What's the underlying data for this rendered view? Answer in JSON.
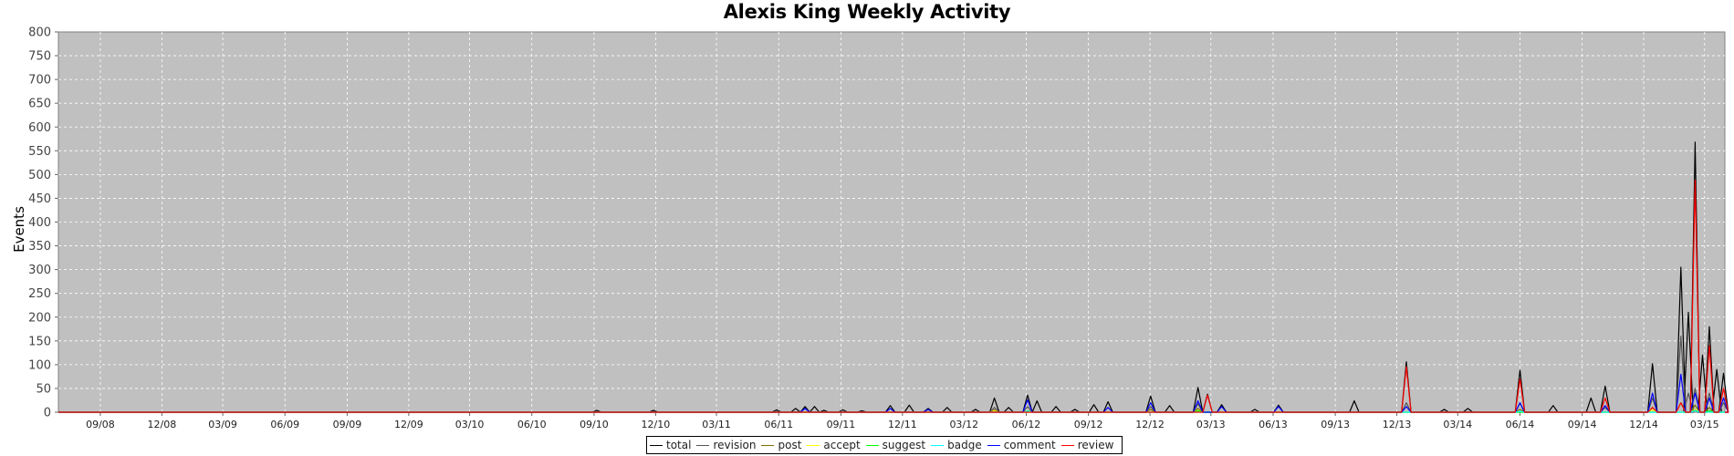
{
  "chart_data": {
    "type": "line",
    "title": "Alexis King Weekly Activity",
    "xlabel": "",
    "ylabel": "Events",
    "ylim": [
      0,
      800
    ],
    "yticks": [
      0,
      50,
      100,
      150,
      200,
      250,
      300,
      350,
      400,
      450,
      500,
      550,
      600,
      650,
      700,
      750,
      800
    ],
    "x_tick_labels": [
      "09/08",
      "12/08",
      "03/09",
      "06/09",
      "09/09",
      "12/09",
      "03/10",
      "06/10",
      "09/10",
      "12/10",
      "03/11",
      "06/11",
      "09/11",
      "12/11",
      "03/12",
      "06/12",
      "09/12",
      "12/12",
      "03/13",
      "06/13",
      "09/13",
      "12/13",
      "03/14",
      "06/14",
      "09/14",
      "12/14",
      "03/15"
    ],
    "x_range": [
      "2008-07-01",
      "2015-03-31"
    ],
    "grid": true,
    "legend_position": "bottom",
    "background_color": "#c0c0c0",
    "series": [
      {
        "name": "total",
        "color": "#000000",
        "points": [
          [
            "2010-09-05",
            4
          ],
          [
            "2010-11-28",
            4
          ],
          [
            "2011-05-29",
            5
          ],
          [
            "2011-06-26",
            8
          ],
          [
            "2011-07-10",
            12
          ],
          [
            "2011-07-24",
            12
          ],
          [
            "2011-08-07",
            4
          ],
          [
            "2011-09-04",
            5
          ],
          [
            "2011-10-02",
            3
          ],
          [
            "2011-11-13",
            14
          ],
          [
            "2011-12-11",
            15
          ],
          [
            "2012-01-08",
            8
          ],
          [
            "2012-02-05",
            10
          ],
          [
            "2012-03-18",
            6
          ],
          [
            "2012-04-15",
            30
          ],
          [
            "2012-05-06",
            10
          ],
          [
            "2012-06-03",
            36
          ],
          [
            "2012-06-17",
            24
          ],
          [
            "2012-07-15",
            12
          ],
          [
            "2012-08-12",
            6
          ],
          [
            "2012-09-09",
            16
          ],
          [
            "2012-09-30",
            22
          ],
          [
            "2012-12-02",
            34
          ],
          [
            "2012-12-30",
            14
          ],
          [
            "2013-02-10",
            52
          ],
          [
            "2013-02-24",
            38
          ],
          [
            "2013-03-17",
            16
          ],
          [
            "2013-05-05",
            6
          ],
          [
            "2013-06-09",
            15
          ],
          [
            "2013-09-29",
            24
          ],
          [
            "2013-12-15",
            106
          ],
          [
            "2014-02-09",
            6
          ],
          [
            "2014-03-16",
            8
          ],
          [
            "2014-06-01",
            88
          ],
          [
            "2014-07-20",
            14
          ],
          [
            "2014-09-14",
            30
          ],
          [
            "2014-10-05",
            55
          ],
          [
            "2014-12-14",
            102
          ],
          [
            "2015-01-25",
            305
          ],
          [
            "2015-02-05",
            210
          ],
          [
            "2015-02-15",
            568
          ],
          [
            "2015-02-26",
            120
          ],
          [
            "2015-03-08",
            180
          ],
          [
            "2015-03-19",
            90
          ],
          [
            "2015-03-29",
            82
          ]
        ]
      },
      {
        "name": "revision",
        "color": "#555555",
        "points": [
          [
            "2012-04-15",
            10
          ],
          [
            "2012-06-03",
            12
          ],
          [
            "2012-12-02",
            12
          ],
          [
            "2013-02-10",
            18
          ],
          [
            "2013-12-15",
            20
          ],
          [
            "2014-06-01",
            18
          ],
          [
            "2014-10-05",
            10
          ],
          [
            "2014-12-14",
            30
          ],
          [
            "2015-01-25",
            160
          ],
          [
            "2015-02-05",
            40
          ],
          [
            "2015-02-15",
            50
          ],
          [
            "2015-03-08",
            40
          ],
          [
            "2015-03-29",
            20
          ]
        ]
      },
      {
        "name": "post",
        "color": "#807000",
        "points": [
          [
            "2012-04-15",
            5
          ],
          [
            "2012-12-02",
            6
          ],
          [
            "2013-02-10",
            8
          ],
          [
            "2014-06-01",
            6
          ],
          [
            "2014-12-14",
            10
          ],
          [
            "2015-01-25",
            20
          ],
          [
            "2015-02-15",
            15
          ],
          [
            "2015-03-08",
            10
          ]
        ]
      },
      {
        "name": "accept",
        "color": "#ffff00",
        "points": [
          [
            "2012-04-15",
            3
          ],
          [
            "2013-02-10",
            4
          ],
          [
            "2014-12-14",
            5
          ],
          [
            "2015-02-15",
            6
          ]
        ]
      },
      {
        "name": "suggest",
        "color": "#00ff00",
        "points": [
          [
            "2012-06-03",
            3
          ],
          [
            "2013-02-10",
            3
          ],
          [
            "2015-02-15",
            4
          ],
          [
            "2015-03-08",
            3
          ]
        ]
      },
      {
        "name": "badge",
        "color": "#00ffff",
        "points": [
          [
            "2012-06-03",
            2
          ],
          [
            "2014-06-01",
            2
          ],
          [
            "2015-02-15",
            3
          ]
        ]
      },
      {
        "name": "comment",
        "color": "#0000ff",
        "points": [
          [
            "2011-07-10",
            8
          ],
          [
            "2011-11-13",
            8
          ],
          [
            "2012-01-08",
            6
          ],
          [
            "2012-06-03",
            26
          ],
          [
            "2012-09-30",
            10
          ],
          [
            "2012-12-02",
            20
          ],
          [
            "2013-02-10",
            24
          ],
          [
            "2013-03-17",
            12
          ],
          [
            "2013-06-09",
            12
          ],
          [
            "2013-12-15",
            12
          ],
          [
            "2014-06-01",
            20
          ],
          [
            "2014-10-05",
            14
          ],
          [
            "2014-12-14",
            40
          ],
          [
            "2015-01-25",
            80
          ],
          [
            "2015-02-15",
            40
          ],
          [
            "2015-03-08",
            30
          ],
          [
            "2015-03-29",
            30
          ]
        ]
      },
      {
        "name": "review",
        "color": "#ff0000",
        "points": [
          [
            "2013-02-24",
            36
          ],
          [
            "2013-12-15",
            96
          ],
          [
            "2014-06-01",
            70
          ],
          [
            "2014-10-05",
            30
          ],
          [
            "2014-12-14",
            10
          ],
          [
            "2015-01-25",
            20
          ],
          [
            "2015-02-15",
            488
          ],
          [
            "2015-03-08",
            140
          ],
          [
            "2015-03-29",
            50
          ]
        ]
      }
    ]
  }
}
